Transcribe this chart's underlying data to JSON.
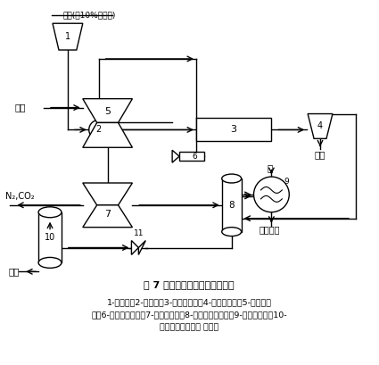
{
  "title": "图 7 超临界水氧化处理污水流程",
  "caption_line1": "1-污水槽；2-污水泵；3-氧化反应器；4-固体分离器；5-空气压缩",
  "caption_line2": "机；6-循环用喷射泵；7-膨胀机透平；8-高压气液分离器；9-蒸汽发生器；10-",
  "caption_line3": "低压气液分离器； 减压器",
  "bg_color": "#ffffff",
  "line_color": "#000000",
  "text_color": "#000000",
  "font_family": "SimSun"
}
